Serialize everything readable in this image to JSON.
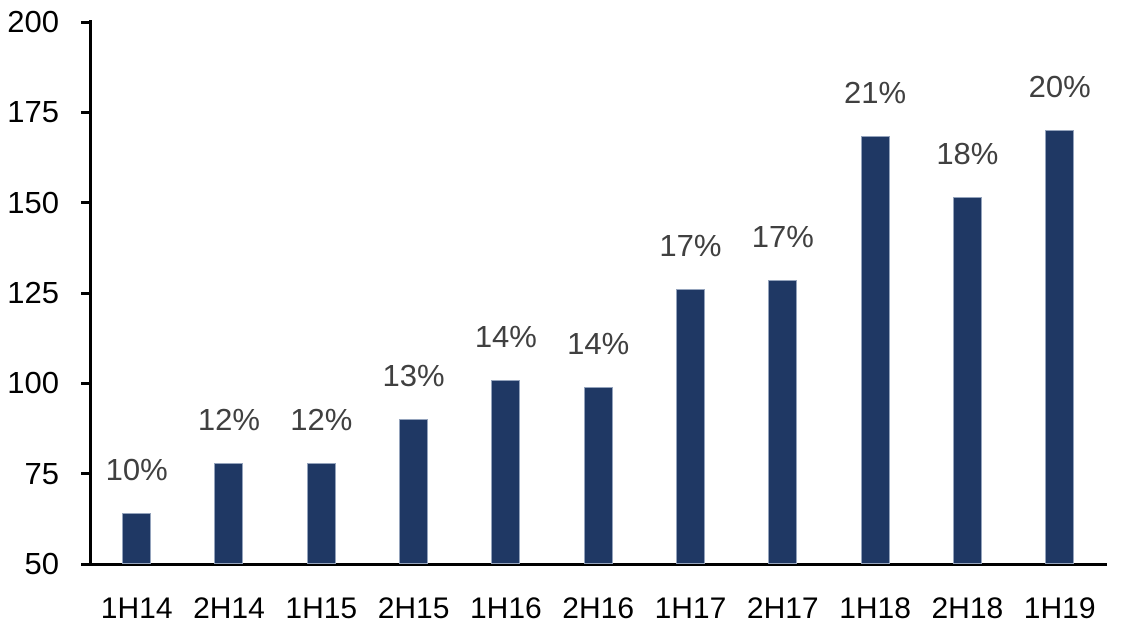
{
  "chart_data": {
    "type": "bar",
    "title": "",
    "xlabel": "",
    "ylabel": "",
    "categories": [
      "1H14",
      "2H14",
      "1H15",
      "2H15",
      "1H16",
      "2H16",
      "1H17",
      "2H17",
      "1H18",
      "2H18",
      "1H19"
    ],
    "values": [
      64,
      78,
      78,
      90,
      101,
      99,
      126,
      128.5,
      168.5,
      151.5,
      170
    ],
    "data_labels": [
      "10%",
      "12%",
      "12%",
      "13%",
      "14%",
      "14%",
      "17%",
      "17%",
      "21%",
      "18%",
      "20%"
    ],
    "ylim": [
      50,
      200
    ],
    "yticks": [
      50,
      75,
      100,
      125,
      150,
      175,
      200
    ],
    "grid": false,
    "legend": "none",
    "colors": {
      "bar_fill": "#1F3864",
      "bar_border": "#94A3BC",
      "data_label": "#404040",
      "axis": "#000000",
      "tick_label": "#000000",
      "background": "#FFFFFF"
    }
  }
}
